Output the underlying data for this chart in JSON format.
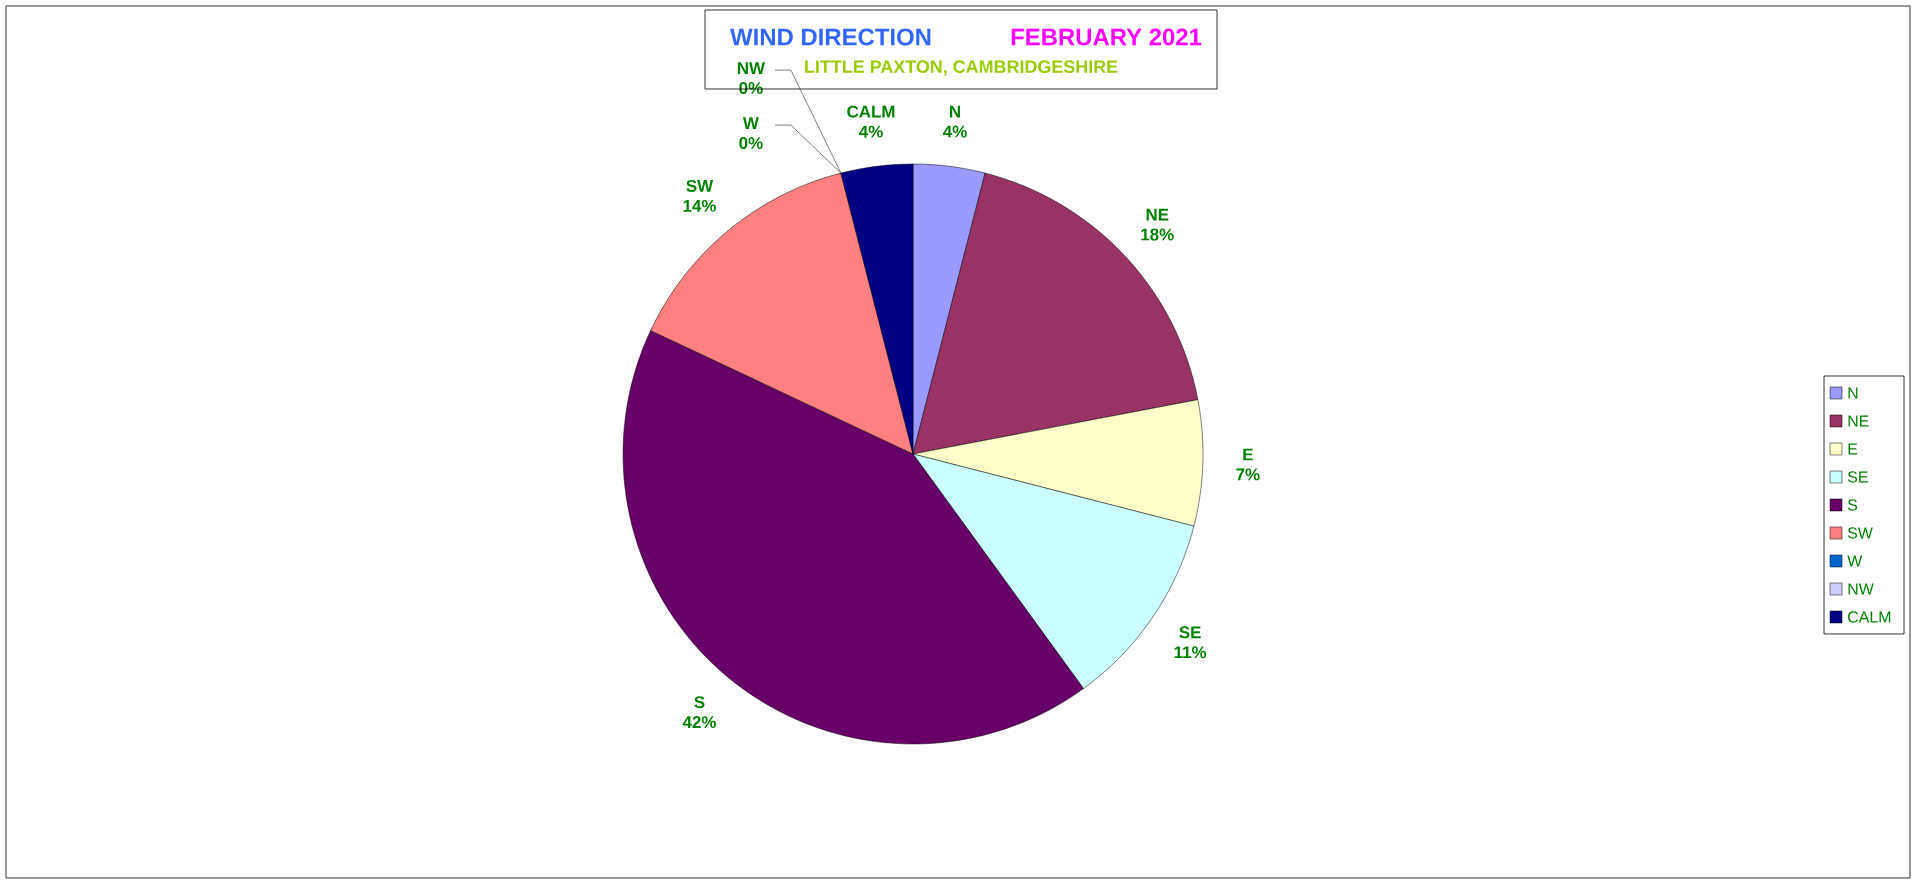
{
  "chart_data": {
    "type": "pie",
    "title": "WIND DIRECTION",
    "subtitle": "FEBRUARY 2021",
    "annotations": [
      "LITTLE PAXTON, CAMBRIDGESHIRE"
    ],
    "categories": [
      "N",
      "NE",
      "E",
      "SE",
      "S",
      "SW",
      "W",
      "NW",
      "CALM"
    ],
    "values": [
      4,
      18,
      7,
      11,
      42,
      14,
      0,
      0,
      4
    ],
    "value_labels": [
      "4%",
      "18%",
      "7%",
      "11%",
      "42%",
      "14%",
      "0%",
      "0%",
      "4%"
    ],
    "colors": [
      "#9999ff",
      "#993366",
      "#ffffcc",
      "#ccffff",
      "#660066",
      "#ff8080",
      "#0066cc",
      "#ccccff",
      "#000080"
    ],
    "legend": "right"
  }
}
